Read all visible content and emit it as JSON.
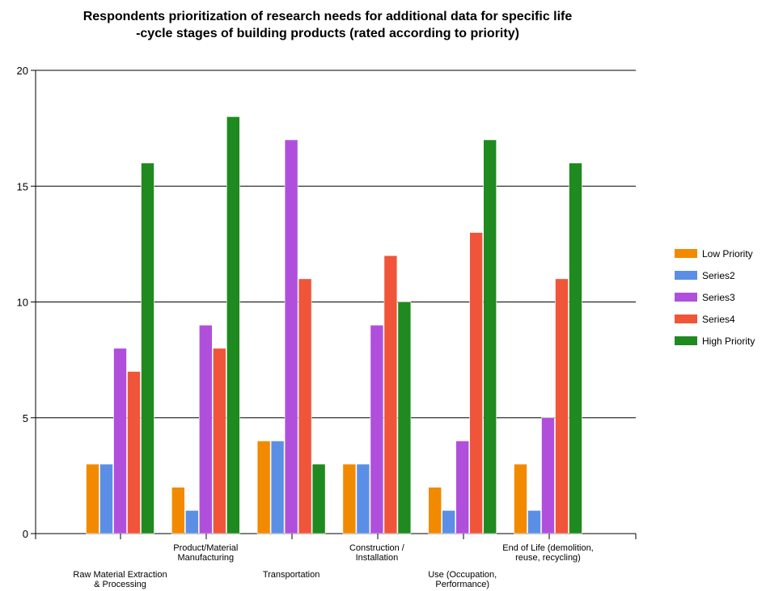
{
  "chart_data": {
    "type": "bar",
    "title_lines": [
      "Respondents prioritization of research needs for additional data for specific life",
      "-cycle stages of building products  (rated according to priority)"
    ],
    "categories": [
      [
        "Raw Material Extraction",
        "& Processing"
      ],
      [
        "Product/Material",
        "Manufacturing"
      ],
      [
        "Transportation"
      ],
      [
        "Construction /",
        "Installation"
      ],
      [
        "Use (Occupation,",
        "Performance)"
      ],
      [
        "End of Life (demolition,",
        "reuse, recycling)"
      ]
    ],
    "series": [
      {
        "name": "Low Priority",
        "color": "#f28a00",
        "values": [
          3,
          2,
          4,
          3,
          2,
          3
        ]
      },
      {
        "name": "Series2",
        "color": "#5b8fe6",
        "values": [
          3,
          1,
          4,
          3,
          1,
          1
        ]
      },
      {
        "name": "Series3",
        "color": "#b04fdc",
        "values": [
          8,
          9,
          17,
          9,
          4,
          5
        ]
      },
      {
        "name": "Series4",
        "color": "#f0553a",
        "values": [
          7,
          8,
          11,
          12,
          13,
          11
        ]
      },
      {
        "name": "High Priority",
        "color": "#1f8a1f",
        "values": [
          16,
          18,
          3,
          10,
          17,
          16
        ]
      }
    ],
    "ylim": [
      0,
      20
    ],
    "yticks": [
      0,
      5,
      10,
      15,
      20
    ],
    "grid": true,
    "legend_position": "right"
  }
}
